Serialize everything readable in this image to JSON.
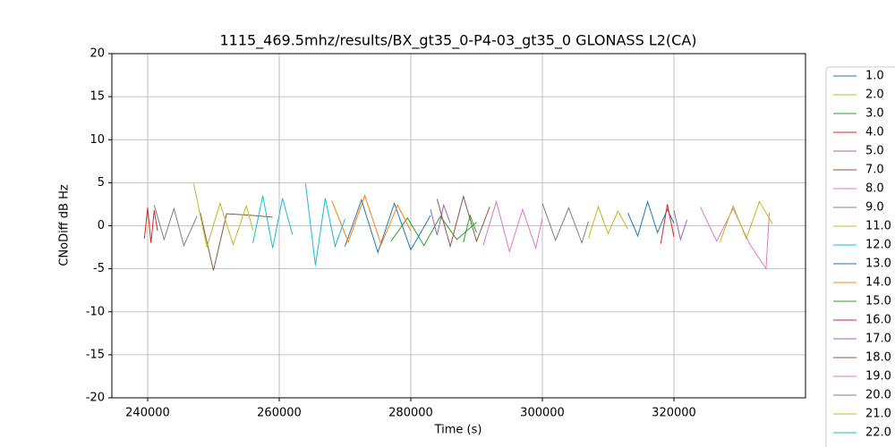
{
  "chart_data": {
    "type": "line",
    "title": "1115_469.5mhz/results/BX_gt35_0-P4-03_gt35_0 GLONASS L2(CA)",
    "x_label": "Time (s)",
    "y_label": "CNoDiff dB Hz",
    "xlim": [
      234560,
      340000
    ],
    "ylim": [
      -20,
      20
    ],
    "xticks": [
      240000,
      260000,
      280000,
      300000,
      320000
    ],
    "yticks": [
      -20,
      -15,
      -10,
      -5,
      0,
      5,
      10,
      15,
      20
    ],
    "grid": true,
    "legend": "right",
    "series": [
      {
        "name": "1.0",
        "color": "#1f77b4",
        "x": [
          313000,
          314500,
          316000,
          317500,
          319000,
          320000
        ],
        "values": [
          1.5,
          -1.2,
          2.8,
          -0.8,
          1.9,
          0.3
        ]
      },
      {
        "name": "2.0",
        "color": "#bcbd22",
        "x": [
          307000,
          308500,
          310000,
          311500,
          313000
        ],
        "values": [
          -1.5,
          2.2,
          -0.9,
          1.7,
          -0.4
        ]
      },
      {
        "name": "3.0",
        "color": "#2ca02c",
        "x": [
          277000,
          279500,
          282000,
          284500,
          287000,
          290000
        ],
        "values": [
          -1.8,
          0.9,
          -2.3,
          1.1,
          -1.6,
          0.4
        ]
      },
      {
        "name": "4.0",
        "color": "#d62728",
        "x": [
          239500,
          240000,
          240500,
          241000,
          241500
        ],
        "values": [
          -1.5,
          2.1,
          -2.0,
          1.8,
          -0.6
        ]
      },
      {
        "name": "5.0",
        "color": "#9467bd",
        "x": [
          283000,
          284000,
          285000,
          286000
        ],
        "values": [
          1.9,
          -1.1,
          2.4,
          0.3
        ]
      },
      {
        "name": "7.0",
        "color": "#8c564b",
        "x": [
          248000,
          250000,
          252000,
          254000,
          256000,
          259000
        ],
        "values": [
          1.5,
          -5.2,
          1.4,
          1.3,
          1.2,
          1.0
        ]
      },
      {
        "name": "8.0",
        "color": "#e377c2",
        "x": [
          291000,
          293000,
          295000,
          297000,
          299000,
          300000
        ],
        "values": [
          -2.3,
          2.8,
          -3.0,
          1.9,
          -2.6,
          0.9
        ]
      },
      {
        "name": "9.0",
        "color": "#7f7f7f",
        "x": [
          300000,
          302000,
          304000,
          306000,
          307000
        ],
        "values": [
          2.6,
          -1.7,
          2.1,
          -2.0,
          0.5
        ]
      },
      {
        "name": "11.0",
        "color": "#bcbd22",
        "x": [
          247000,
          249000,
          251000,
          253000,
          255000,
          256000
        ],
        "values": [
          4.9,
          -2.5,
          2.6,
          -2.2,
          2.3,
          -0.5
        ]
      },
      {
        "name": "12.0",
        "color": "#17becf",
        "x": [
          256000,
          257500,
          259000,
          260500,
          262000
        ],
        "values": [
          -2.0,
          3.5,
          -2.6,
          3.2,
          -1.0
        ]
      },
      {
        "name": "13.0",
        "color": "#1f77b4",
        "x": [
          270000,
          272500,
          275000,
          277500,
          280000,
          283000
        ],
        "values": [
          -2.4,
          3.0,
          -3.1,
          2.6,
          -2.8,
          1.2
        ]
      },
      {
        "name": "14.0",
        "color": "#ff7f0e",
        "x": [
          268000,
          270500,
          273000,
          275500,
          278000,
          280000
        ],
        "values": [
          2.9,
          -1.9,
          3.5,
          -2.2,
          2.4,
          -0.6
        ]
      },
      {
        "name": "15.0",
        "color": "#2ca02c",
        "x": [
          288000,
          289000,
          290000
        ],
        "values": [
          -1.9,
          1.2,
          -0.8
        ]
      },
      {
        "name": "16.0",
        "color": "#d62728",
        "x": [
          318000,
          319000,
          320000
        ],
        "values": [
          -2.1,
          2.5,
          -1.3
        ]
      },
      {
        "name": "17.0",
        "color": "#9467bd",
        "x": [
          320000,
          321000,
          322000
        ],
        "values": [
          1.8,
          -1.6,
          0.7
        ]
      },
      {
        "name": "18.0",
        "color": "#8c564b",
        "x": [
          284000,
          286000,
          288000,
          290000,
          292000
        ],
        "values": [
          3.1,
          -2.4,
          3.4,
          -1.8,
          2.2
        ]
      },
      {
        "name": "19.0",
        "color": "#e377c2",
        "x": [
          324000,
          326500,
          329000,
          331500,
          334000,
          334500
        ],
        "values": [
          2.2,
          -1.8,
          2.0,
          -2.1,
          -5.0,
          1.5
        ]
      },
      {
        "name": "20.0",
        "color": "#7f7f7f",
        "x": [
          241000,
          242500,
          244000,
          245500,
          247500
        ],
        "values": [
          2.4,
          -1.6,
          2.0,
          -2.3,
          1.1
        ]
      },
      {
        "name": "21.0",
        "color": "#bcbd22",
        "x": [
          327000,
          329000,
          331000,
          333000,
          335000
        ],
        "values": [
          -1.9,
          2.3,
          -1.5,
          2.8,
          0.2
        ]
      },
      {
        "name": "22.0",
        "color": "#17becf",
        "x": [
          264000,
          265500,
          267000,
          268500,
          270000
        ],
        "values": [
          4.9,
          -4.6,
          3.2,
          -2.4,
          0.8
        ]
      }
    ]
  }
}
